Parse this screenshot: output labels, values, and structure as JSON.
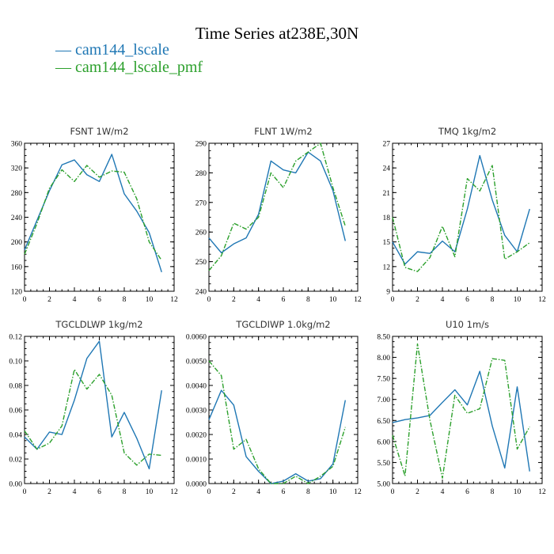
{
  "suptitle": "Time Series at238E,30N",
  "legend": [
    {
      "label": "cam144_lscale",
      "color": "#1f77b4",
      "dash": "solid"
    },
    {
      "label": "cam144_lscale_pmf",
      "color": "#2ca02c",
      "dash": "dashdot"
    }
  ],
  "chart_data": [
    {
      "type": "line",
      "title": "FSNT   1W/m2",
      "x": [
        0,
        1,
        2,
        3,
        4,
        5,
        6,
        7,
        8,
        9,
        10,
        11
      ],
      "xlim": [
        0,
        12
      ],
      "xticks": [
        "0",
        "2",
        "4",
        "6",
        "8",
        "10",
        "12"
      ],
      "ylim": [
        120,
        360
      ],
      "yticks": [
        "120",
        "160",
        "200",
        "240",
        "280",
        "320",
        "360"
      ],
      "series": [
        {
          "name": "cam144_lscale",
          "values": [
            187,
            235,
            283,
            325,
            333,
            309,
            298,
            342,
            278,
            250,
            215,
            151
          ]
        },
        {
          "name": "cam144_lscale_pmf",
          "values": [
            180,
            230,
            287,
            317,
            298,
            324,
            305,
            315,
            313,
            270,
            200,
            170
          ]
        }
      ]
    },
    {
      "type": "line",
      "title": "FLNT   1W/m2",
      "x": [
        0,
        1,
        2,
        3,
        4,
        5,
        6,
        7,
        8,
        9,
        10,
        11
      ],
      "xlim": [
        0,
        12
      ],
      "xticks": [
        "0",
        "2",
        "4",
        "6",
        "8",
        "10",
        "12"
      ],
      "ylim": [
        240,
        290
      ],
      "yticks": [
        "240",
        "250",
        "260",
        "270",
        "280",
        "290"
      ],
      "series": [
        {
          "name": "cam144_lscale",
          "values": [
            258,
            253,
            256,
            258,
            266,
            284,
            281,
            280,
            287,
            284,
            274,
            257
          ]
        },
        {
          "name": "cam144_lscale_pmf",
          "values": [
            247,
            252,
            263,
            261,
            265,
            280,
            275,
            284,
            287,
            290,
            275,
            262
          ]
        }
      ]
    },
    {
      "type": "line",
      "title": "TMQ   1kg/m2",
      "x": [
        0,
        1,
        2,
        3,
        4,
        5,
        6,
        7,
        8,
        9,
        10,
        11
      ],
      "xlim": [
        0,
        12
      ],
      "xticks": [
        "0",
        "2",
        "4",
        "6",
        "8",
        "10",
        "12"
      ],
      "ylim": [
        9,
        27
      ],
      "yticks": [
        "9",
        "12",
        "15",
        "18",
        "21",
        "24",
        "27"
      ],
      "series": [
        {
          "name": "cam144_lscale",
          "values": [
            15.0,
            12.3,
            13.8,
            13.6,
            15.1,
            13.8,
            19.0,
            25.5,
            20.1,
            15.8,
            13.8,
            19.0
          ]
        },
        {
          "name": "cam144_lscale_pmf",
          "values": [
            18.0,
            11.9,
            11.4,
            13.1,
            16.9,
            13.2,
            22.7,
            21.2,
            24.3,
            12.9,
            13.8,
            14.9
          ]
        }
      ]
    },
    {
      "type": "line",
      "title": "TGCLDLWP   1kg/m2",
      "x": [
        0,
        1,
        2,
        3,
        4,
        5,
        6,
        7,
        8,
        9,
        10,
        11
      ],
      "xlim": [
        0,
        12
      ],
      "xticks": [
        "0",
        "2",
        "4",
        "6",
        "8",
        "10",
        "12"
      ],
      "ylim": [
        0.0,
        0.12
      ],
      "yticks": [
        "0.00",
        "0.02",
        "0.04",
        "0.06",
        "0.08",
        "0.10",
        "0.12"
      ],
      "series": [
        {
          "name": "cam144_lscale",
          "values": [
            0.038,
            0.028,
            0.042,
            0.04,
            0.068,
            0.102,
            0.116,
            0.038,
            0.058,
            0.037,
            0.012,
            0.076
          ]
        },
        {
          "name": "cam144_lscale_pmf",
          "values": [
            0.043,
            0.028,
            0.033,
            0.047,
            0.093,
            0.077,
            0.089,
            0.072,
            0.025,
            0.015,
            0.024,
            0.023
          ]
        }
      ]
    },
    {
      "type": "line",
      "title": "TGCLDIWP   1.0kg/m2",
      "x": [
        0,
        1,
        2,
        3,
        4,
        5,
        6,
        7,
        8,
        9,
        10,
        11
      ],
      "xlim": [
        0,
        12
      ],
      "xticks": [
        "0",
        "2",
        "4",
        "6",
        "8",
        "10",
        "12"
      ],
      "ylim": [
        0.0,
        0.006
      ],
      "yticks": [
        "0.0000",
        "0.0010",
        "0.0020",
        "0.0030",
        "0.0040",
        "0.0050",
        "0.0060"
      ],
      "series": [
        {
          "name": "cam144_lscale",
          "values": [
            0.0026,
            0.0038,
            0.0032,
            0.0011,
            0.0005,
            0.0,
            0.0001,
            0.0004,
            0.0001,
            0.0002,
            0.0008,
            0.0034
          ]
        },
        {
          "name": "cam144_lscale_pmf",
          "values": [
            0.005,
            0.0044,
            0.0014,
            0.0018,
            0.0006,
            0.0,
            0.0,
            0.0003,
            0.0,
            0.0003,
            0.0007,
            0.0023
          ]
        }
      ]
    },
    {
      "type": "line",
      "title": "U10   1m/s",
      "x": [
        0,
        1,
        2,
        3,
        4,
        5,
        6,
        7,
        8,
        9,
        10,
        11
      ],
      "xlim": [
        0,
        12
      ],
      "xticks": [
        "0",
        "2",
        "4",
        "6",
        "8",
        "10",
        "12"
      ],
      "ylim": [
        5.0,
        8.5
      ],
      "yticks": [
        "5.00",
        "5.50",
        "6.00",
        "6.50",
        "7.00",
        "7.50",
        "8.00",
        "8.50"
      ],
      "series": [
        {
          "name": "cam144_lscale",
          "values": [
            6.45,
            6.52,
            6.56,
            6.62,
            6.93,
            7.23,
            6.87,
            7.67,
            6.37,
            5.37,
            7.3,
            5.29
          ]
        },
        {
          "name": "cam144_lscale_pmf",
          "values": [
            6.15,
            5.18,
            8.32,
            6.51,
            5.13,
            7.1,
            6.67,
            6.78,
            7.97,
            7.93,
            5.82,
            6.35
          ]
        }
      ]
    }
  ]
}
